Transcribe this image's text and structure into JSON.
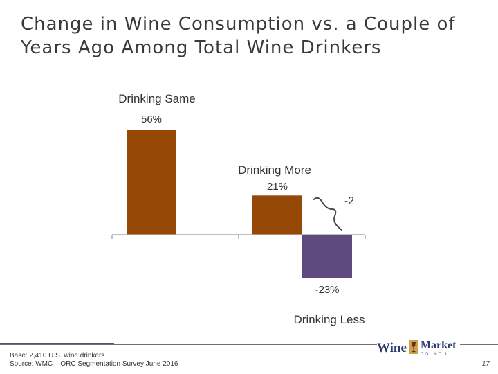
{
  "title": "Change in Wine Consumption vs. a Couple of Years Ago Among Total Wine Drinkers",
  "footer": {
    "base": "Base: 2,410 U.S. wine drinkers",
    "source": "Source: WMC – ORC Segmentation Survey June 2016"
  },
  "page_number": "17",
  "logo": {
    "word1": "Wine",
    "word2": "Market",
    "word3": "COUNCIL"
  },
  "colors": {
    "brown": "#964806",
    "purple": "#5e4a7e",
    "axis": "#aaaaaa"
  },
  "chart_data": {
    "type": "bar",
    "categories": [
      "Drinking Same",
      "Drinking More",
      "Drinking Less"
    ],
    "values": [
      56,
      21,
      -23
    ],
    "value_labels": [
      "56%",
      "21%",
      "-23%"
    ],
    "annotation": "-2",
    "ylim": [
      -30,
      60
    ],
    "grid": false
  }
}
